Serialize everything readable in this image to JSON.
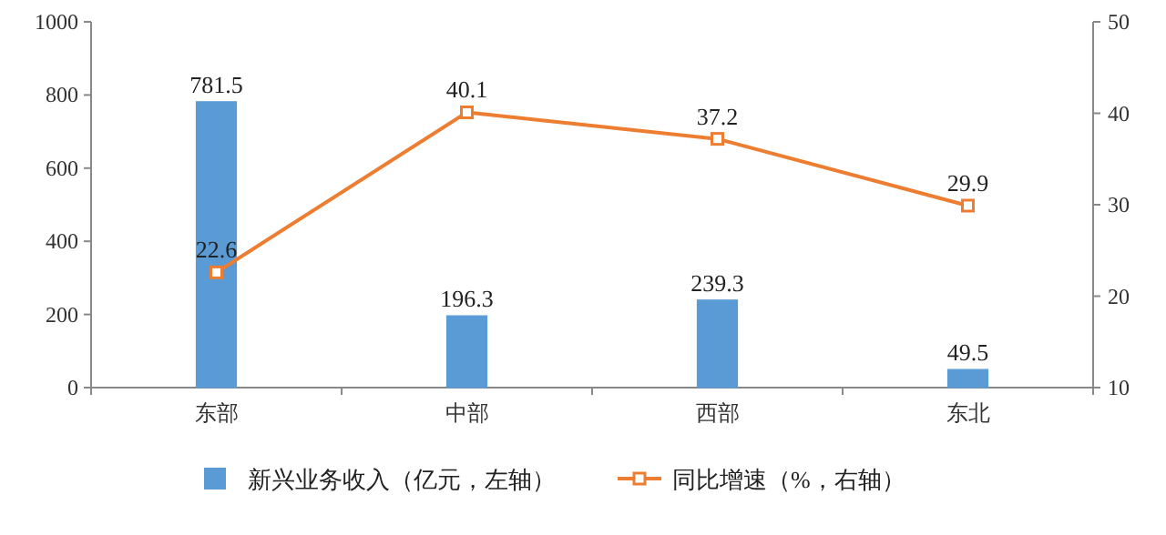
{
  "chart_data": {
    "type": "bar",
    "categories": [
      "东部",
      "中部",
      "西部",
      "东北"
    ],
    "series": [
      {
        "name": "新兴业务收入（亿元，左轴）",
        "color": "#5b9bd5",
        "values": [
          781.5,
          196.3,
          239.3,
          49.5
        ]
      },
      {
        "name": "同比增速（%，右轴）",
        "type": "line",
        "axis": "y2",
        "color": "#ed7d31",
        "marker": "square",
        "values": [
          22.6,
          40.1,
          37.2,
          29.9
        ]
      }
    ],
    "ylim": [
      0,
      1000
    ],
    "yticks": [
      0,
      200,
      400,
      600,
      800,
      1000
    ],
    "y2lim": [
      10,
      50
    ],
    "y2ticks": [
      10,
      20,
      30,
      40,
      50
    ],
    "data_labels": true,
    "legend": "bottom",
    "grid": false
  }
}
